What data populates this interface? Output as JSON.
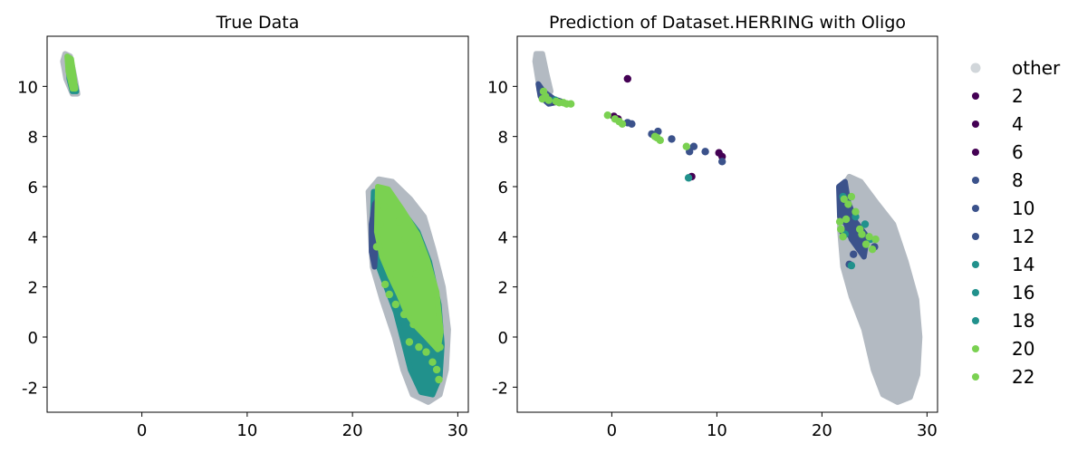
{
  "chart_data": [
    {
      "type": "scatter",
      "title": "True Data",
      "xlabel": "",
      "ylabel": "",
      "xlim": [
        -9,
        31
      ],
      "ylim": [
        -3,
        12
      ],
      "xticks": [
        0,
        10,
        20,
        30
      ],
      "yticks": [
        -2,
        0,
        2,
        4,
        6,
        8,
        10
      ],
      "xtick_labels": [
        "0",
        "10",
        "20",
        "30"
      ],
      "ytick_labels": [
        "-2",
        "0",
        "2",
        "4",
        "6",
        "8",
        "10"
      ],
      "regions": [
        {
          "label": "other",
          "color": "#b3bac2",
          "polygon": [
            [
              -7.3,
              11.3
            ],
            [
              -6.8,
              11.2
            ],
            [
              -6.3,
              10.2
            ],
            [
              -6.1,
              9.7
            ],
            [
              -6.6,
              9.7
            ],
            [
              -7.2,
              10.3
            ],
            [
              -7.5,
              11.0
            ]
          ]
        },
        {
          "label": "other",
          "color": "#b3bac2",
          "polygon": [
            [
              21.5,
              5.8
            ],
            [
              22.5,
              6.3
            ],
            [
              23.8,
              6.2
            ],
            [
              25.5,
              5.5
            ],
            [
              26.8,
              4.8
            ],
            [
              27.7,
              3.5
            ],
            [
              28.6,
              2.0
            ],
            [
              29.1,
              0.3
            ],
            [
              28.9,
              -1.3
            ],
            [
              28.3,
              -2.3
            ],
            [
              27.2,
              -2.6
            ],
            [
              25.7,
              -2.3
            ],
            [
              24.8,
              -1.3
            ],
            [
              24.0,
              0.0
            ],
            [
              22.8,
              1.5
            ],
            [
              21.9,
              2.8
            ],
            [
              21.7,
              4.2
            ]
          ]
        },
        {
          "label": "18",
          "color": "#21918c",
          "polygon": [
            [
              22.0,
              5.8
            ],
            [
              23.0,
              5.8
            ],
            [
              24.6,
              5.1
            ],
            [
              26.2,
              4.2
            ],
            [
              27.3,
              3.0
            ],
            [
              28.2,
              1.3
            ],
            [
              28.5,
              -0.3
            ],
            [
              28.3,
              -1.6
            ],
            [
              27.6,
              -2.3
            ],
            [
              26.5,
              -2.2
            ],
            [
              25.5,
              -1.3
            ],
            [
              24.9,
              -0.3
            ],
            [
              24.1,
              1.0
            ],
            [
              23.2,
              2.0
            ],
            [
              22.3,
              3.0
            ],
            [
              21.9,
              4.5
            ]
          ]
        },
        {
          "label": "10",
          "color": "#3b528b",
          "polygon": [
            [
              22.1,
              5.3
            ],
            [
              22.6,
              5.6
            ],
            [
              22.5,
              4.8
            ],
            [
              22.2,
              3.7
            ],
            [
              22.1,
              2.8
            ],
            [
              21.8,
              3.4
            ],
            [
              21.8,
              4.5
            ]
          ]
        },
        {
          "label": "20",
          "color": "#7ad151",
          "polygon": [
            [
              22.4,
              6.0
            ],
            [
              23.4,
              5.9
            ],
            [
              24.7,
              5.1
            ],
            [
              26.2,
              4.1
            ],
            [
              27.1,
              3.1
            ],
            [
              28.0,
              1.8
            ],
            [
              28.4,
              0.2
            ],
            [
              28.1,
              -0.5
            ],
            [
              27.0,
              0.0
            ],
            [
              26.1,
              0.4
            ],
            [
              25.2,
              0.9
            ],
            [
              24.4,
              1.7
            ],
            [
              23.6,
              2.4
            ],
            [
              22.8,
              3.2
            ],
            [
              22.3,
              4.2
            ]
          ]
        },
        {
          "label": "18",
          "color": "#21918c",
          "polygon": [
            [
              -7.0,
              11.0
            ],
            [
              -6.8,
              10.8
            ],
            [
              -6.3,
              10.0
            ],
            [
              -6.2,
              9.8
            ],
            [
              -6.6,
              9.8
            ],
            [
              -6.9,
              10.3
            ]
          ]
        },
        {
          "label": "20",
          "color": "#7ad151",
          "polygon": [
            [
              -7.1,
              11.2
            ],
            [
              -6.7,
              11.1
            ],
            [
              -6.5,
              10.5
            ],
            [
              -6.3,
              9.9
            ],
            [
              -6.6,
              9.9
            ],
            [
              -7.0,
              10.6
            ]
          ]
        }
      ],
      "series": [
        {
          "label": "20",
          "color": "#7ad151",
          "points": [
            [
              22.3,
              3.6
            ],
            [
              22.6,
              4.5
            ],
            [
              23.1,
              2.1
            ],
            [
              23.5,
              1.7
            ],
            [
              24.1,
              1.3
            ],
            [
              24.9,
              0.9
            ],
            [
              25.4,
              -0.2
            ],
            [
              26.3,
              -0.4
            ],
            [
              27.0,
              -0.6
            ],
            [
              27.6,
              -1.0
            ],
            [
              28.0,
              -1.3
            ],
            [
              28.2,
              -1.7
            ],
            [
              28.3,
              -0.4
            ],
            [
              23.0,
              5.2
            ],
            [
              24.4,
              4.6
            ],
            [
              25.0,
              3.9
            ],
            [
              26.0,
              2.5
            ],
            [
              25.8,
              0.5
            ],
            [
              -6.9,
              10.9
            ],
            [
              -6.6,
              10.2
            ]
          ]
        }
      ]
    },
    {
      "type": "scatter",
      "title": "Prediction of Dataset.HERRING with Oligo",
      "xlabel": "",
      "ylabel": "",
      "xlim": [
        -9,
        31
      ],
      "ylim": [
        -3,
        12
      ],
      "xticks": [
        0,
        10,
        20,
        30
      ],
      "yticks": [
        -2,
        0,
        2,
        4,
        6,
        8,
        10
      ],
      "xtick_labels": [
        "0",
        "10",
        "20",
        "30"
      ],
      "ytick_labels": [
        "-2",
        "0",
        "2",
        "4",
        "6",
        "8",
        "10"
      ],
      "regions": [
        {
          "label": "other",
          "color": "#b3bac2",
          "polygon": [
            [
              -7.2,
              11.3
            ],
            [
              -6.6,
              11.3
            ],
            [
              -6.2,
              10.5
            ],
            [
              -5.8,
              9.8
            ],
            [
              -6.5,
              9.5
            ],
            [
              -7.0,
              10.2
            ],
            [
              -7.3,
              11.0
            ]
          ]
        },
        {
          "label": "other",
          "color": "#b3bac2",
          "polygon": [
            [
              21.7,
              5.8
            ],
            [
              22.6,
              6.4
            ],
            [
              23.7,
              6.2
            ],
            [
              25.3,
              5.3
            ],
            [
              26.8,
              4.5
            ],
            [
              28.0,
              3.0
            ],
            [
              29.0,
              1.5
            ],
            [
              29.3,
              0.0
            ],
            [
              29.1,
              -1.5
            ],
            [
              28.4,
              -2.4
            ],
            [
              27.2,
              -2.6
            ],
            [
              25.8,
              -2.3
            ],
            [
              24.9,
              -1.3
            ],
            [
              24.0,
              0.3
            ],
            [
              22.8,
              1.6
            ],
            [
              22.0,
              2.8
            ],
            [
              21.7,
              4.3
            ]
          ]
        },
        {
          "label": "10",
          "color": "#3b528b",
          "polygon": [
            [
              21.6,
              6.0
            ],
            [
              22.2,
              6.2
            ],
            [
              22.5,
              5.4
            ],
            [
              23.2,
              4.6
            ],
            [
              24.3,
              4.0
            ],
            [
              24.0,
              3.2
            ],
            [
              22.8,
              3.9
            ],
            [
              22.3,
              4.5
            ],
            [
              21.7,
              4.8
            ]
          ]
        },
        {
          "label": "10",
          "color": "#3b528b",
          "polygon": [
            [
              -7.0,
              10.1
            ],
            [
              -6.5,
              9.8
            ],
            [
              -5.5,
              9.5
            ],
            [
              -4.8,
              9.4
            ],
            [
              -6.0,
              9.3
            ],
            [
              -6.8,
              9.6
            ]
          ]
        }
      ],
      "series": [
        {
          "label": "other",
          "color": "#b3bac2",
          "points": [
            [
              23.1,
              2.2
            ],
            [
              22.4,
              3.3
            ]
          ]
        },
        {
          "label": "2",
          "color": "#440154",
          "points": [
            [
              1.5,
              10.3
            ],
            [
              0.2,
              8.8
            ],
            [
              10.2,
              7.35
            ],
            [
              10.5,
              7.2
            ],
            [
              7.6,
              6.4
            ]
          ]
        },
        {
          "label": "4",
          "color": "#440154",
          "points": [
            [
              0.6,
              8.7
            ]
          ]
        },
        {
          "label": "6",
          "color": "#440154",
          "points": [
            [
              -5.6,
              9.4
            ]
          ]
        },
        {
          "label": "8",
          "color": "#3b528b",
          "points": [
            [
              1.5,
              8.55
            ],
            [
              1.9,
              8.5
            ],
            [
              3.8,
              8.1
            ],
            [
              4.4,
              8.2
            ],
            [
              5.7,
              7.9
            ],
            [
              7.8,
              7.6
            ],
            [
              8.9,
              7.4
            ],
            [
              10.5,
              7.0
            ],
            [
              7.4,
              7.4
            ],
            [
              -5.9,
              9.35
            ],
            [
              -6.6,
              9.6
            ]
          ]
        },
        {
          "label": "10",
          "color": "#3b528b",
          "points": [
            [
              22.6,
              2.9
            ],
            [
              25.0,
              3.6
            ],
            [
              22.0,
              4.2
            ]
          ]
        },
        {
          "label": "12",
          "color": "#3b528b",
          "points": [
            [
              -6.8,
              9.85
            ],
            [
              23.0,
              3.3
            ]
          ]
        },
        {
          "label": "14",
          "color": "#21918c",
          "points": [
            [
              22.8,
              2.85
            ],
            [
              24.1,
              4.5
            ],
            [
              24.6,
              3.9
            ],
            [
              7.3,
              6.35
            ],
            [
              22.0,
              5.6
            ]
          ]
        },
        {
          "label": "16",
          "color": "#21918c",
          "points": [
            [
              -5.4,
              9.45
            ]
          ]
        },
        {
          "label": "18",
          "color": "#21918c",
          "points": [
            [
              22.2,
              4.1
            ],
            [
              23.2,
              4.8
            ]
          ]
        },
        {
          "label": "20",
          "color": "#7ad151",
          "points": [
            [
              -6.5,
              9.8
            ],
            [
              -6.3,
              9.6
            ],
            [
              -6.0,
              9.45
            ],
            [
              -5.3,
              9.4
            ],
            [
              -4.6,
              9.35
            ],
            [
              -3.9,
              9.3
            ],
            [
              -0.4,
              8.85
            ],
            [
              0.7,
              8.6
            ],
            [
              1.0,
              8.5
            ],
            [
              4.1,
              8.0
            ],
            [
              4.6,
              7.85
            ],
            [
              7.1,
              7.6
            ],
            [
              21.7,
              4.6
            ],
            [
              22.0,
              4.0
            ],
            [
              22.5,
              5.3
            ],
            [
              23.2,
              5.0
            ],
            [
              23.8,
              4.1
            ],
            [
              24.2,
              3.7
            ],
            [
              24.8,
              3.5
            ],
            [
              25.1,
              3.9
            ]
          ]
        },
        {
          "label": "22",
          "color": "#7ad151",
          "points": [
            [
              -6.6,
              9.5
            ],
            [
              -5.0,
              9.35
            ],
            [
              -4.3,
              9.3
            ],
            [
              0.3,
              8.7
            ],
            [
              4.3,
              7.95
            ],
            [
              22.1,
              5.5
            ],
            [
              22.8,
              5.6
            ],
            [
              23.6,
              4.3
            ],
            [
              24.5,
              4.0
            ],
            [
              21.8,
              4.3
            ],
            [
              22.3,
              4.7
            ]
          ]
        }
      ],
      "legend": {
        "placement": "right",
        "entries": [
          {
            "label": "other",
            "color": "#b3bac2"
          },
          {
            "label": "2",
            "color": "#440154"
          },
          {
            "label": "4",
            "color": "#440154"
          },
          {
            "label": "6",
            "color": "#440154"
          },
          {
            "label": "8",
            "color": "#3b528b"
          },
          {
            "label": "10",
            "color": "#3b528b"
          },
          {
            "label": "12",
            "color": "#3b528b"
          },
          {
            "label": "14",
            "color": "#21918c"
          },
          {
            "label": "16",
            "color": "#21918c"
          },
          {
            "label": "18",
            "color": "#21918c"
          },
          {
            "label": "20",
            "color": "#7ad151"
          },
          {
            "label": "22",
            "color": "#7ad151"
          }
        ]
      }
    }
  ]
}
